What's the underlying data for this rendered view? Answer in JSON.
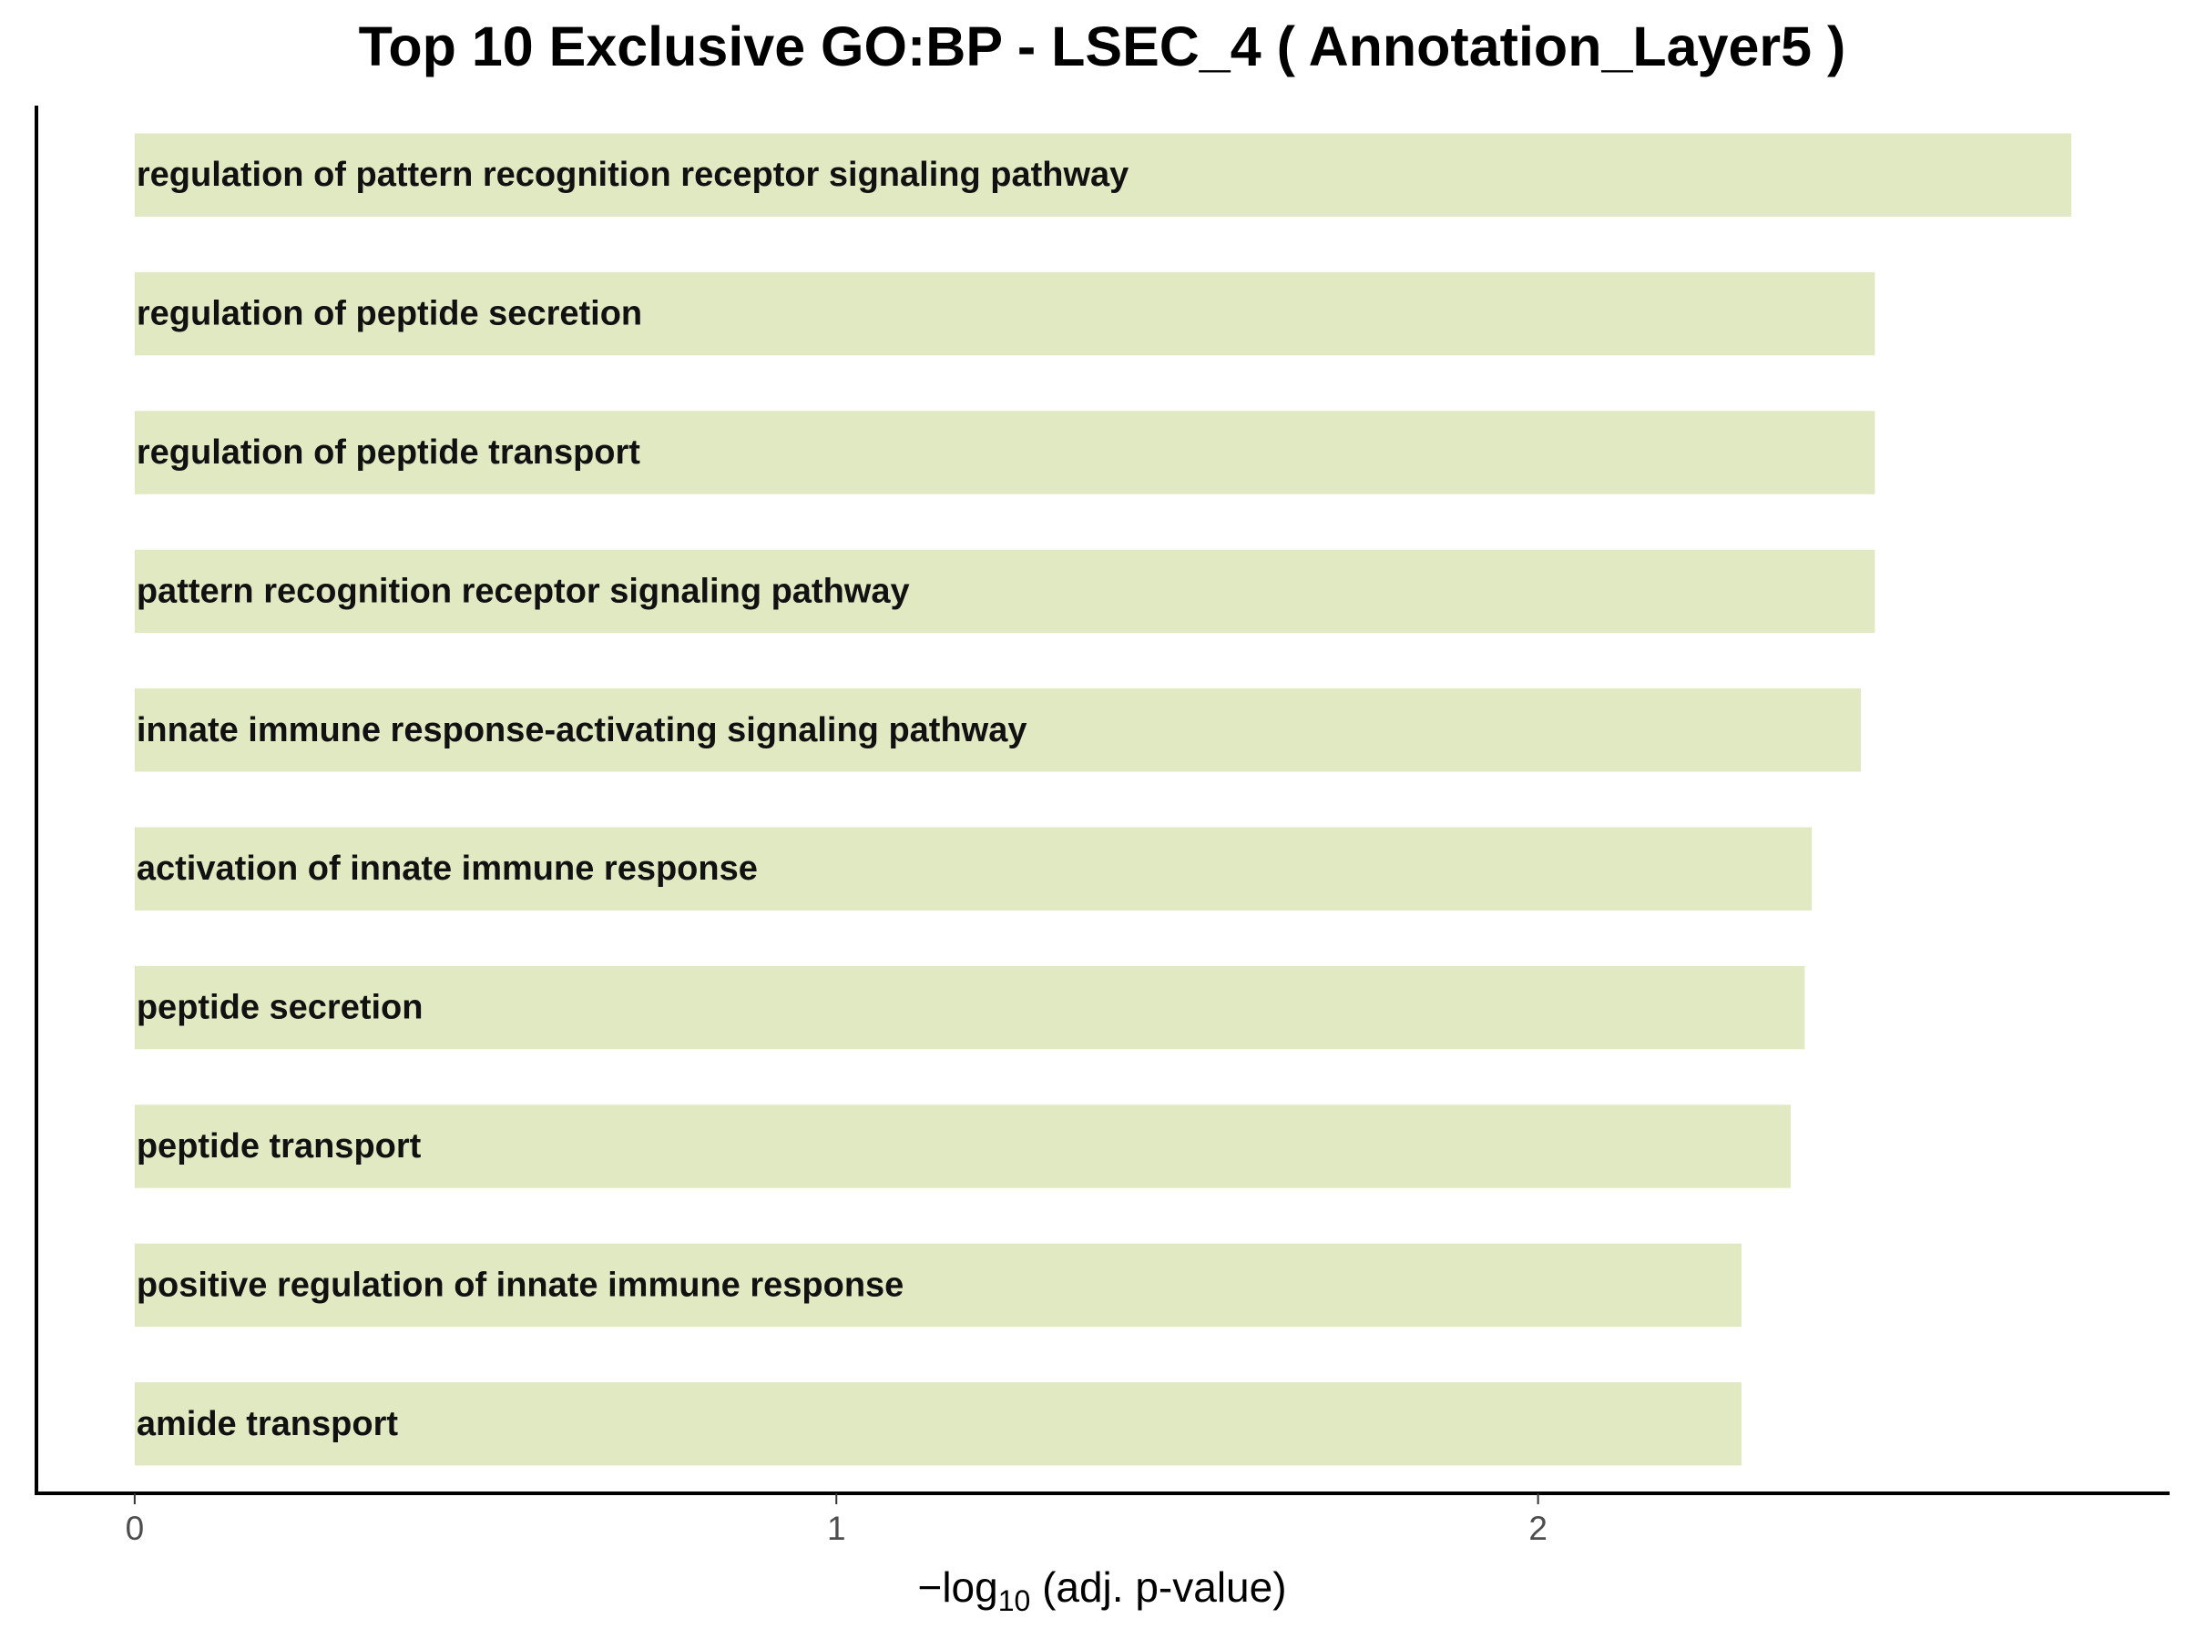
{
  "chart_data": {
    "type": "bar",
    "orientation": "horizontal",
    "title": "Top 10 Exclusive GO:BP - LSEC_4 ( Annotation_Layer5 )",
    "xlabel": {
      "prefix": "−log",
      "subscript": "10",
      "suffix": " (adj. p-value)"
    },
    "ylabel": "",
    "xlim": [
      -0.14,
      2.9
    ],
    "xticks": [
      "0",
      "1",
      "2"
    ],
    "xtick_values": [
      0,
      1,
      2
    ],
    "grid": false,
    "legend": "none",
    "bar_color": "#e1e9c3",
    "label_position": "inside-left",
    "categories": [
      "regulation of pattern recognition receptor signaling pathway",
      "regulation of peptide secretion",
      "regulation of peptide transport",
      "pattern recognition receptor signaling pathway",
      "innate immune response-activating signaling pathway",
      "activation of innate immune response",
      "peptide secretion",
      "peptide transport",
      "positive regulation of innate immune response",
      "amide transport"
    ],
    "values": [
      2.76,
      2.48,
      2.48,
      2.48,
      2.46,
      2.39,
      2.38,
      2.36,
      2.29,
      2.29
    ]
  }
}
